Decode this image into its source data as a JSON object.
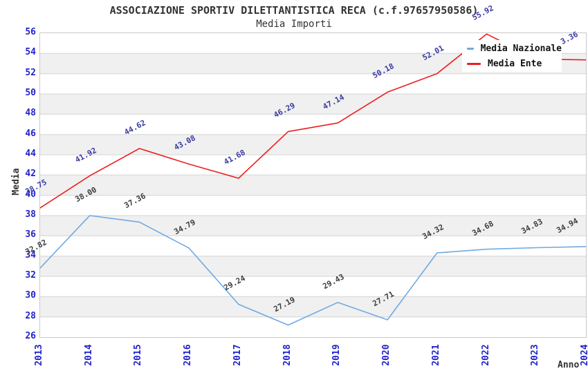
{
  "chart_data": {
    "type": "line",
    "title": "ASSOCIAZIONE SPORTIV DILETTANTISTICA RECA (c.f.97657950586)",
    "subtitle": "Media Importi",
    "xlabel": "Anno",
    "ylabel": "Media",
    "x": [
      "2013",
      "2014",
      "2015",
      "2016",
      "2017",
      "2018",
      "2019",
      "2020",
      "2021",
      "2022",
      "2023",
      "2024"
    ],
    "ylim": [
      26,
      56
    ],
    "ytick_step": 2,
    "grid": "horizontal gridlines every 2 units with alternating light-gray bands",
    "legend_position": "top-right inside plot",
    "tick_color": "#2222cc",
    "grid_color": "#d4d4d4",
    "band_color": "#f0f0f0",
    "series": [
      {
        "name": "Media Nazionale",
        "color": "#6fa9e2",
        "label_color": "#3d3d3d",
        "values": [
          32.82,
          38.0,
          37.36,
          34.79,
          29.24,
          27.19,
          29.43,
          27.71,
          34.32,
          34.68,
          34.83,
          34.94
        ]
      },
      {
        "name": "Media Ente",
        "color": "#ee1c1c",
        "label_color": "#3b3ba0",
        "values": [
          38.75,
          41.92,
          44.62,
          43.08,
          41.68,
          46.29,
          47.14,
          50.18,
          52.01,
          55.92,
          53.45,
          53.36
        ],
        "occluded_label_years": [
          "2023"
        ]
      }
    ]
  }
}
